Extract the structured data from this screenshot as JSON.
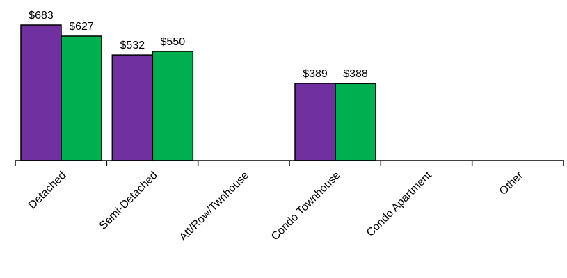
{
  "chart_data": {
    "type": "bar",
    "title": "",
    "xlabel": "",
    "ylabel": "",
    "categories": [
      "Detached",
      "Semi-Detached",
      "Att/Row/Twnhouse",
      "Condo Townhouse",
      "Condo Apartment",
      "Other"
    ],
    "series": [
      {
        "color": "#7030a0",
        "values": [
          683,
          532,
          null,
          389,
          null,
          null
        ],
        "labels": [
          "$683",
          "$532",
          "",
          "$389",
          "",
          ""
        ]
      },
      {
        "color": "#00b050",
        "values": [
          627,
          550,
          null,
          388,
          null,
          null
        ],
        "labels": [
          "$627",
          "$550",
          "",
          "$388",
          "",
          ""
        ]
      }
    ],
    "ylim": [
      0,
      683
    ],
    "grid": false,
    "legend": "none"
  }
}
